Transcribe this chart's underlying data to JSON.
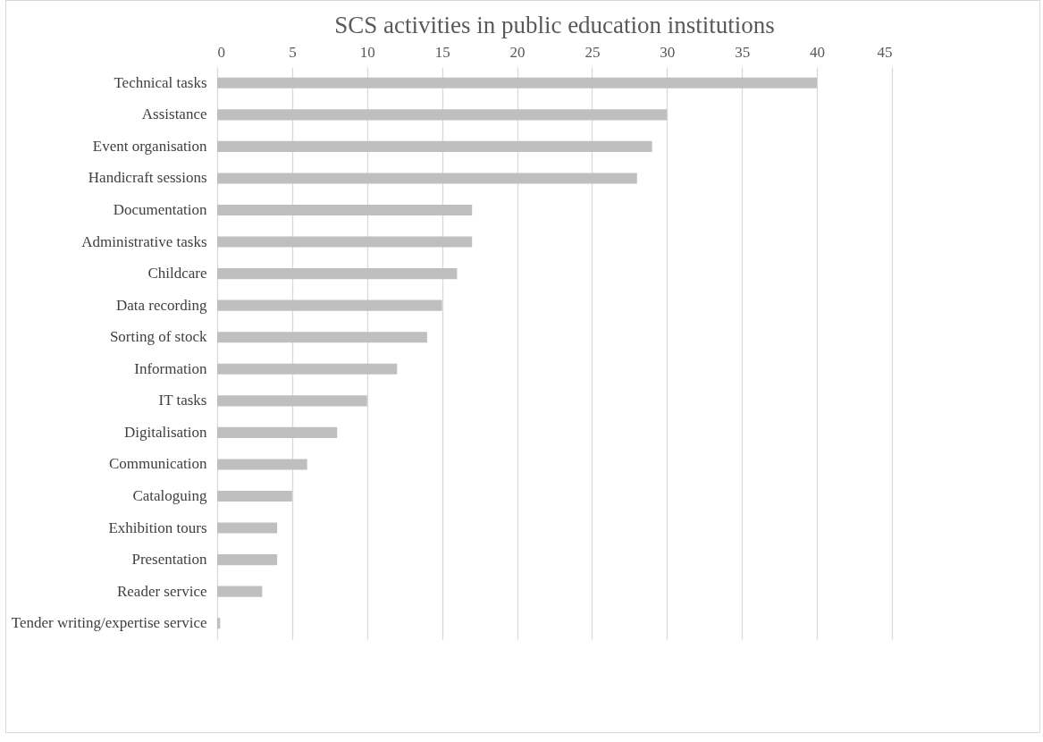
{
  "chart_data": {
    "type": "bar",
    "orientation": "horizontal",
    "title": "SCS activities in public education institutions",
    "categories": [
      "Technical tasks",
      "Assistance",
      "Event organisation",
      "Handicraft sessions",
      "Documentation",
      "Administrative tasks",
      "Childcare",
      "Data recording",
      "Sorting of stock",
      "Information",
      "IT tasks",
      "Digitalisation",
      "Communication",
      "Cataloguing",
      "Exhibition tours",
      "Presentation",
      "Reader service",
      "Tender writing/expertise service"
    ],
    "values": [
      40,
      30,
      29,
      28,
      17,
      17,
      16,
      15,
      14,
      12,
      10,
      8,
      6,
      5,
      4,
      4,
      3,
      0.2
    ],
    "color": "#bfbfbf",
    "xlim": [
      0,
      45
    ],
    "xticks": [
      0,
      5,
      10,
      15,
      20,
      25,
      30,
      35,
      40,
      45
    ],
    "grid": "x"
  }
}
